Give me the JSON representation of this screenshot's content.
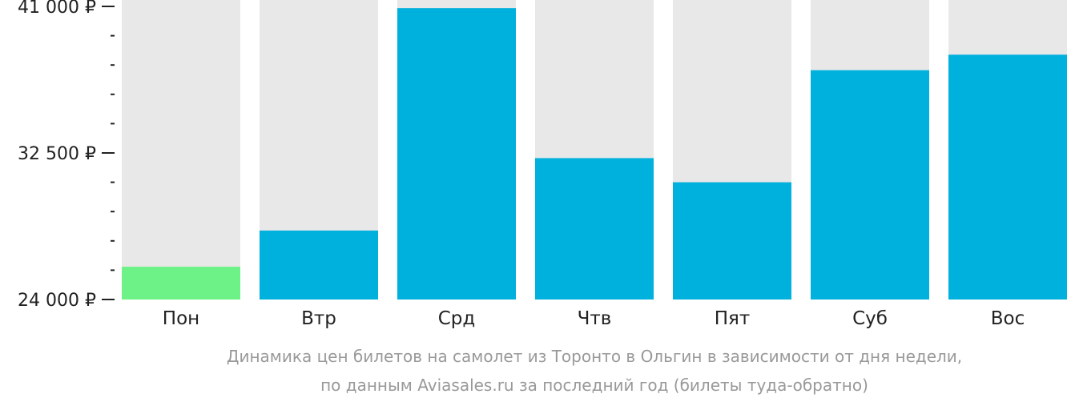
{
  "chart_data": {
    "type": "bar",
    "categories": [
      "Пон",
      "Втр",
      "Срд",
      "Чтв",
      "Пят",
      "Суб",
      "Вос"
    ],
    "values": [
      25900,
      28000,
      40900,
      32200,
      30800,
      37300,
      38200
    ],
    "ylim": [
      24000,
      41000
    ],
    "yticks": [
      {
        "value": 41000,
        "label": "41 000 ₽"
      },
      {
        "value": 32500,
        "label": "32 500 ₽"
      },
      {
        "value": 24000,
        "label": "24 000 ₽"
      }
    ],
    "minor_ticks_per_interval": 4,
    "colors": {
      "default": "#00b0dd",
      "lowest": "#6cf287",
      "track": "#e8e8e8",
      "axis": "#222222"
    },
    "lowest_index": 0,
    "caption": [
      "Динамика цен билетов на самолет из Торонто в Ольгин в зависимости от дня недели,",
      "по данным Aviasales.ru за последний год (билеты туда-обратно)"
    ],
    "grid": false,
    "legend": "none"
  }
}
